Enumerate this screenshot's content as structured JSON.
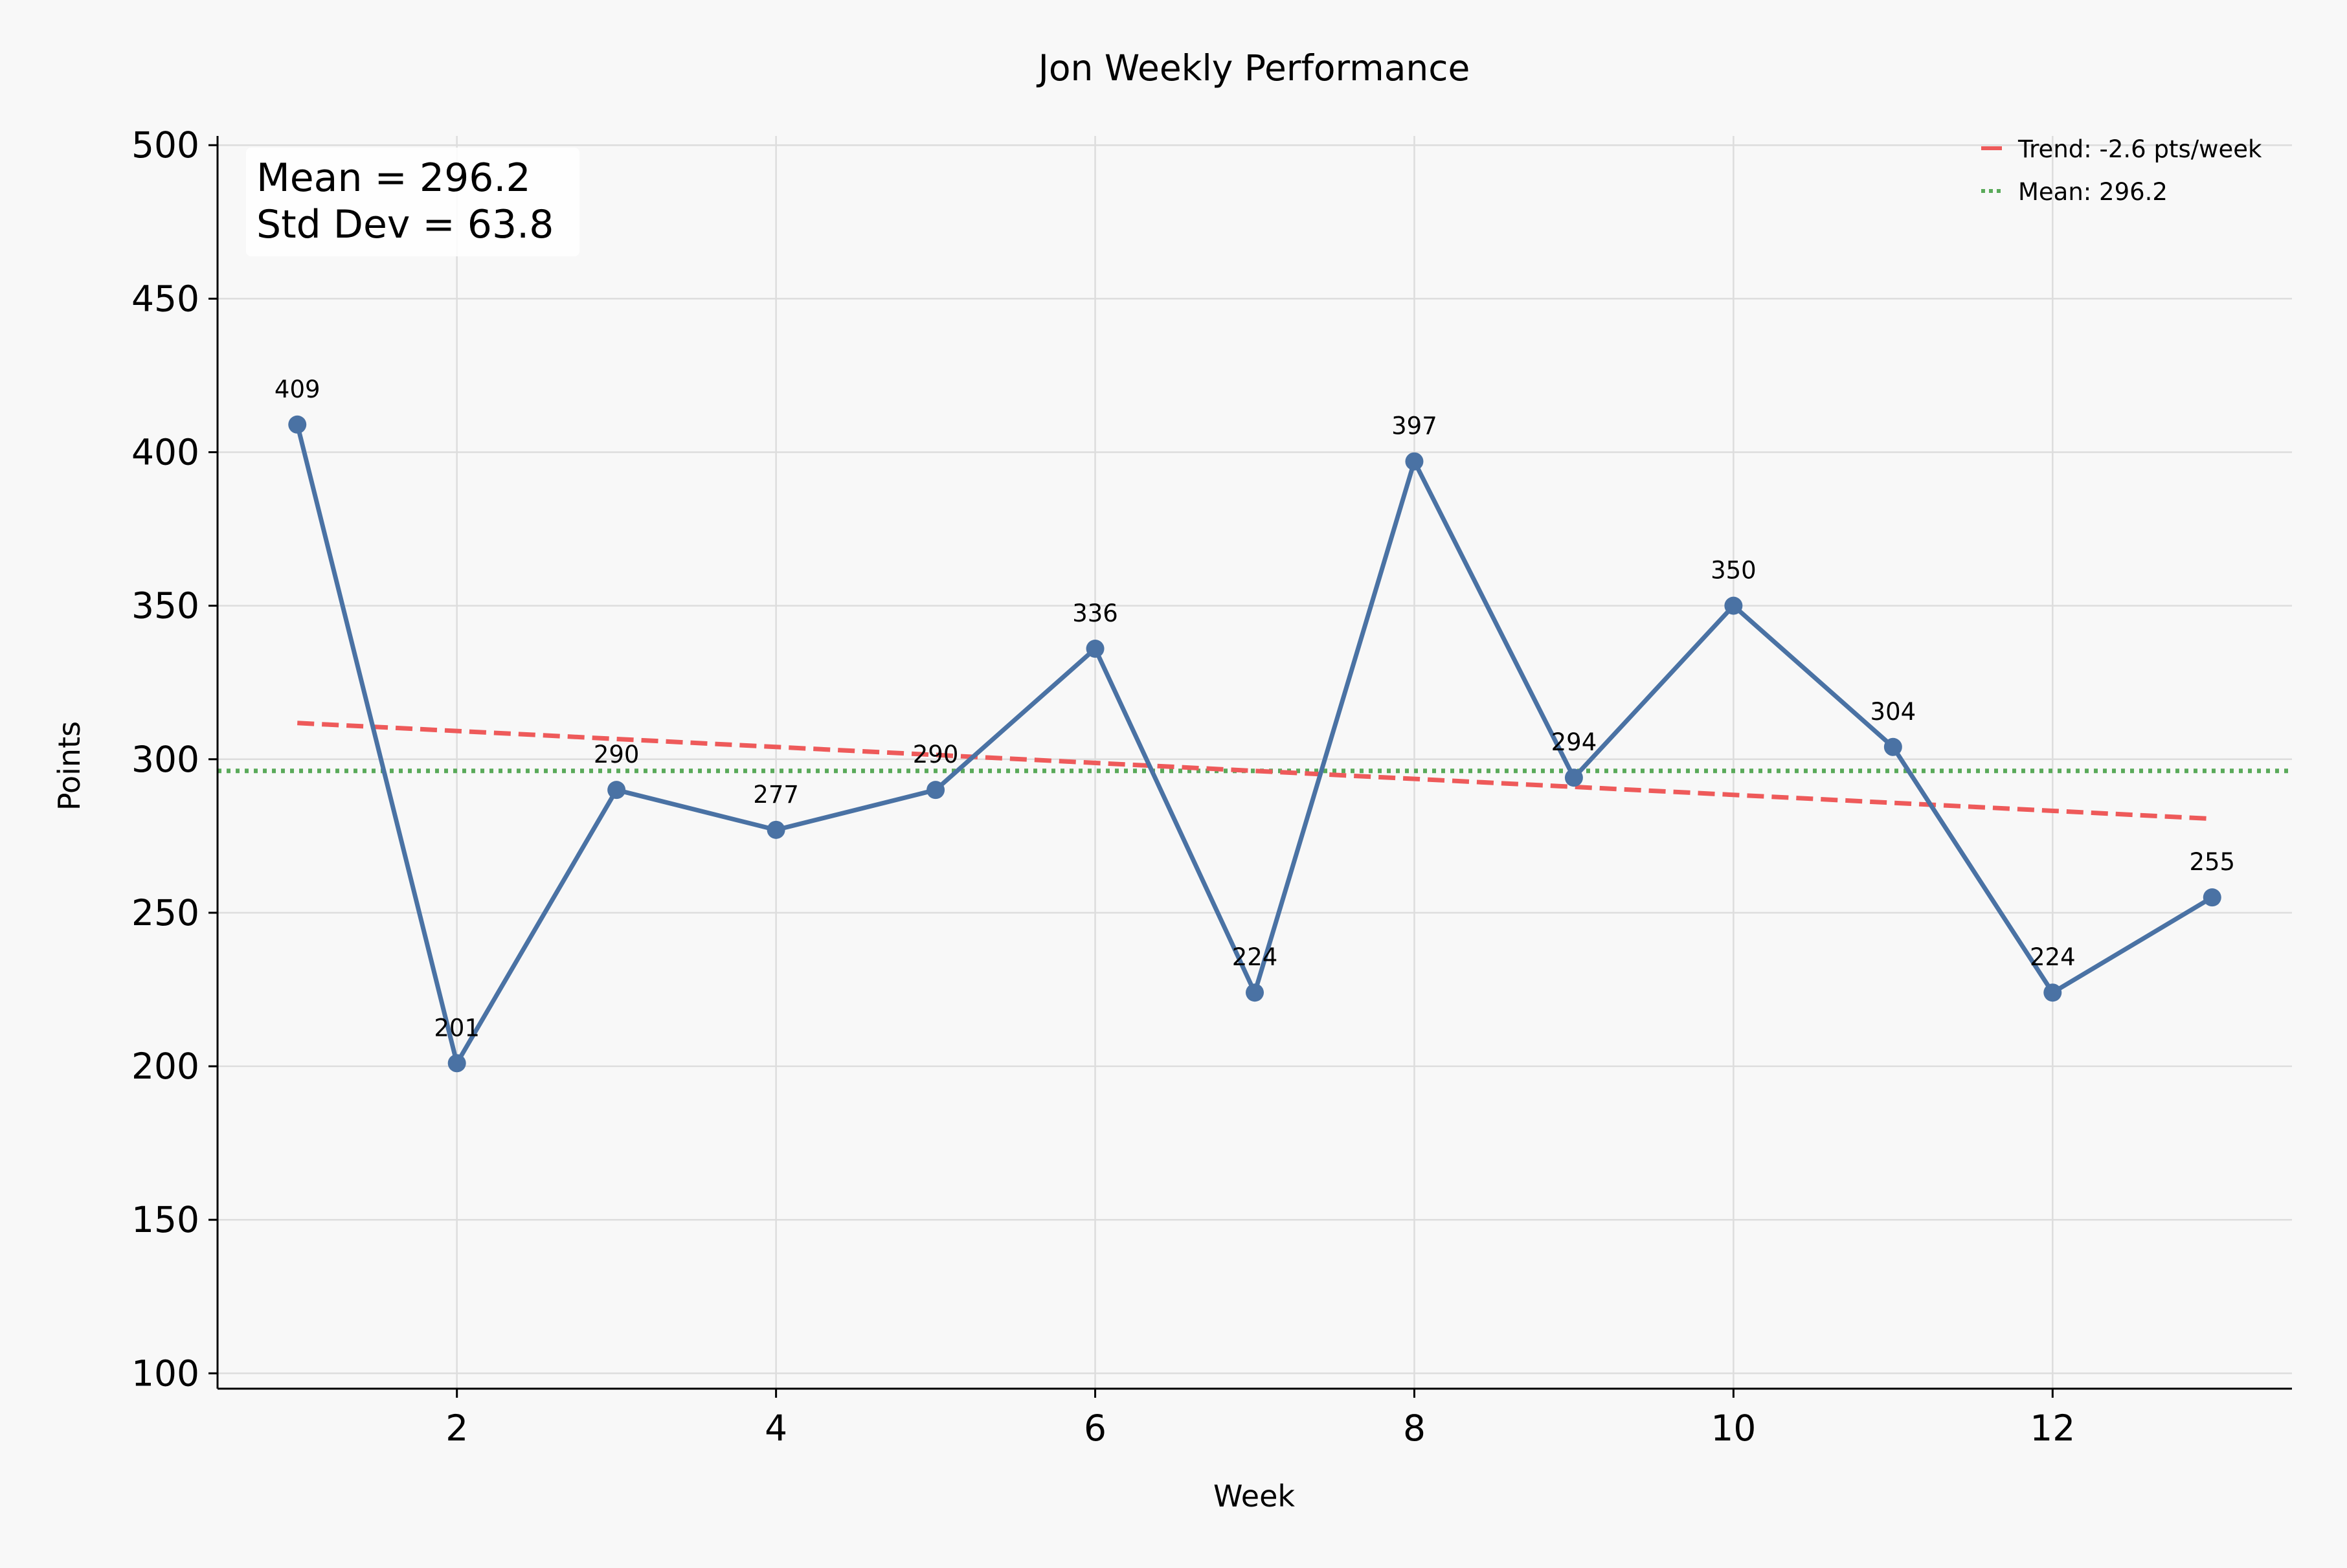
{
  "chart_data": {
    "type": "line",
    "title": "Jon Weekly Performance",
    "xlabel": "Week",
    "ylabel": "Points",
    "xlim": [
      0.5,
      13.5
    ],
    "ylim": [
      95,
      503
    ],
    "xticks": [
      2,
      4,
      6,
      8,
      10,
      12
    ],
    "yticks": [
      100,
      150,
      200,
      250,
      300,
      350,
      400,
      450,
      500
    ],
    "grid": true,
    "legend_position": "top-right",
    "series": [
      {
        "x": [
          1,
          2,
          3,
          4,
          5,
          6,
          7,
          8,
          9,
          10,
          11,
          12,
          13
        ],
        "values": [
          409,
          201,
          290,
          277,
          290,
          336,
          224,
          397,
          294,
          350,
          304,
          224,
          255
        ],
        "color": "#4a72a4",
        "marker": "circle"
      }
    ],
    "data_labels": [
      "409",
      "201",
      "290",
      "277",
      "290",
      "336",
      "224",
      "397",
      "294",
      "350",
      "304",
      "224",
      "255"
    ],
    "trend": {
      "name": "Trend: -2.6 pts/week",
      "x": [
        1,
        13
      ],
      "values": [
        311.8,
        280.6
      ],
      "color": "#ee5a5a",
      "style": "dashed"
    },
    "mean_line": {
      "name": "Mean: 296.2",
      "value": 296.2,
      "color": "#5aaa5a",
      "style": "dotted"
    },
    "stats_box": [
      "Mean = 296.2",
      "Std Dev = 63.8"
    ],
    "background": "#f8f8f8",
    "grid_color": "#dddddd"
  }
}
